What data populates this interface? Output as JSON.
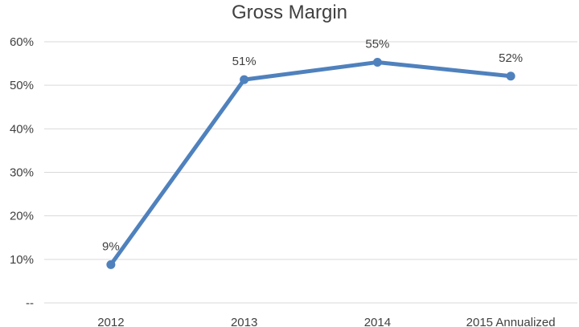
{
  "chart_data": {
    "type": "line",
    "title": "Gross Margin",
    "xlabel": "",
    "ylabel": "",
    "categories": [
      "2012",
      "2013",
      "2014",
      "2015 Annualized"
    ],
    "series": [
      {
        "values": [
          0.088,
          0.513,
          0.553,
          0.521
        ],
        "data_labels": [
          "9%",
          "51%",
          "55%",
          "52%"
        ]
      }
    ],
    "ylim": [
      0,
      0.6
    ],
    "y_ticks": [
      0,
      0.1,
      0.2,
      0.3,
      0.4,
      0.5,
      0.6
    ],
    "y_tick_labels": [
      "--",
      "10%",
      "20%",
      "30%",
      "40%",
      "50%",
      "60%"
    ],
    "grid": true,
    "legend": "none",
    "colors": {
      "series": "#4f81bd",
      "grid": "#d9d9d9",
      "text": "#404040"
    }
  }
}
